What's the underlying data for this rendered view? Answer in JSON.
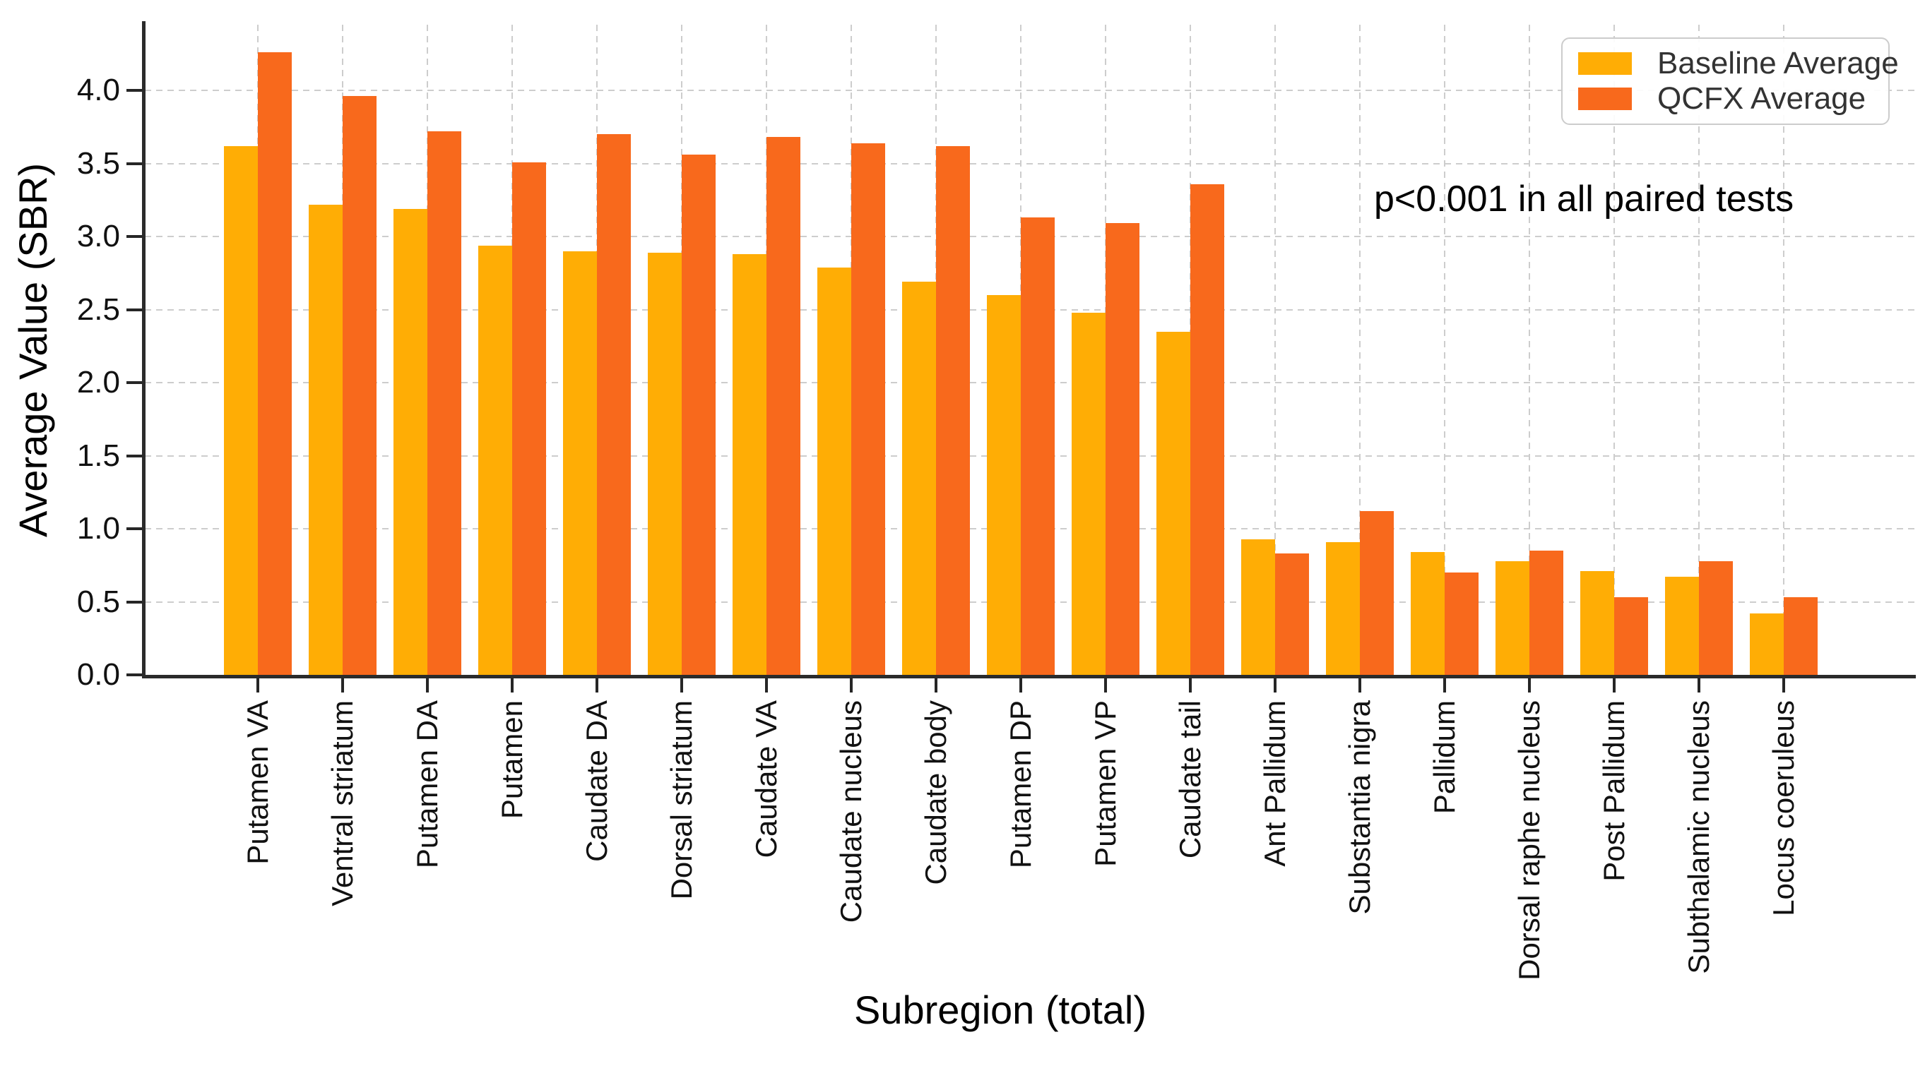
{
  "chart_data": {
    "type": "bar",
    "title": "",
    "xlabel": "Subregion (total)",
    "ylabel": "Average Value (SBR)",
    "annotation": "p<0.001 in all paired tests",
    "categories": [
      "Putamen VA",
      "Ventral striatum",
      "Putamen DA",
      "Putamen",
      "Caudate DA",
      "Dorsal striatum",
      "Caudate VA",
      "Caudate nucleus",
      "Caudate body",
      "Putamen DP",
      "Putamen VP",
      "Caudate tail",
      "Ant Pallidum",
      "Substantia nigra",
      "Pallidum",
      "Dorsal raphe nucleus",
      "Post Pallidum",
      "Subthalamic nucleus",
      "Locus coeruleus"
    ],
    "series": [
      {
        "name": "Baseline Average",
        "color": "#FFAD05",
        "values": [
          3.62,
          3.22,
          3.19,
          2.94,
          2.9,
          2.89,
          2.88,
          2.79,
          2.69,
          2.6,
          2.48,
          2.35,
          0.93,
          0.91,
          0.84,
          0.78,
          0.71,
          0.67,
          0.42
        ]
      },
      {
        "name": "QCFX Average",
        "color": "#F8691C",
        "values": [
          4.26,
          3.96,
          3.72,
          3.51,
          3.7,
          3.56,
          3.68,
          3.64,
          3.62,
          3.13,
          3.09,
          3.36,
          0.83,
          1.12,
          0.7,
          0.85,
          0.53,
          0.78,
          0.53
        ]
      }
    ],
    "ylim": [
      0,
      4.45
    ],
    "yticks": [
      0.0,
      0.5,
      1.0,
      1.5,
      2.0,
      2.5,
      3.0,
      3.5,
      4.0
    ],
    "grid": true,
    "grid_style": "dashed",
    "legend_position": "upper right"
  },
  "colors": {
    "background": "#ffffff",
    "grid": "#cdcdcd",
    "spine": "#2b2b2b",
    "tick_text": "#111111",
    "legend_border": "#cccccc"
  }
}
